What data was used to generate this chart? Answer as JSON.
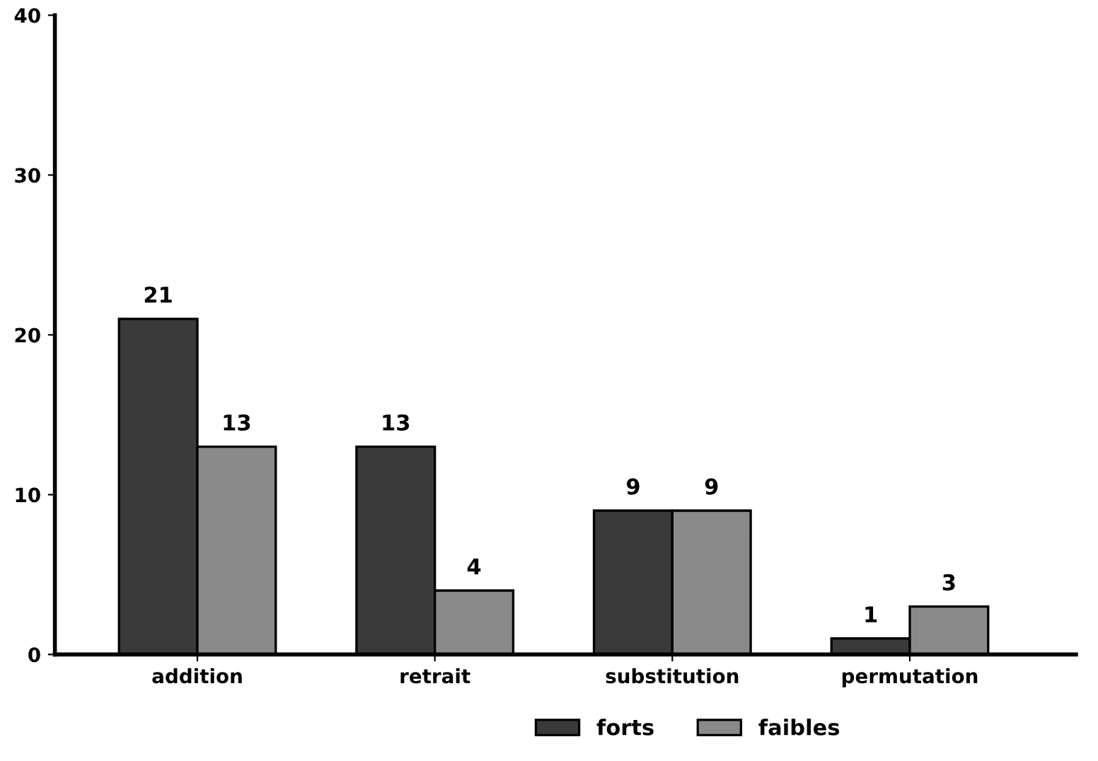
{
  "chart_data": {
    "type": "bar",
    "categories": [
      "addition",
      "retrait",
      "substitution",
      "permutation"
    ],
    "series": [
      {
        "name": "forts",
        "color": "#3a3a3a",
        "values": [
          21,
          13,
          9,
          1
        ]
      },
      {
        "name": "faibles",
        "color": "#8a8a8a",
        "values": [
          13,
          4,
          9,
          3
        ]
      }
    ],
    "ylim": [
      0,
      40
    ],
    "yticks": [
      0,
      10,
      20,
      30,
      40
    ],
    "grid": false,
    "legend": "bottom",
    "data_labels": true
  }
}
